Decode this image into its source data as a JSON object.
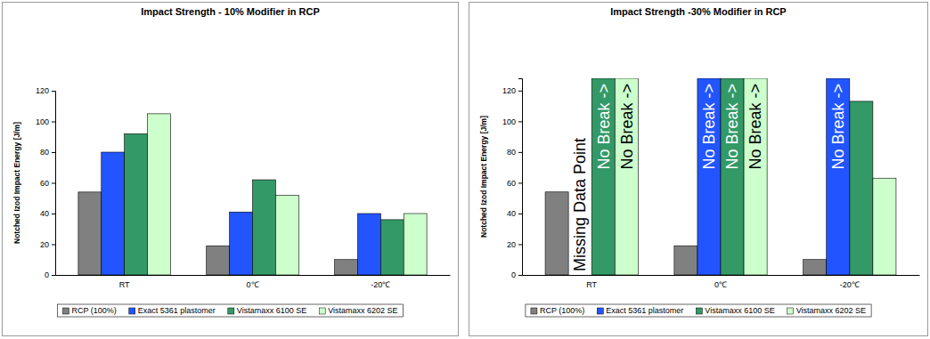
{
  "chart_data": [
    {
      "type": "bar",
      "title": "Impact Strength - 10% Modifier in RCP",
      "y_label": "Notched Izod Impact Energy [J/m]",
      "categories": [
        "RT",
        "0℃",
        "-20℃"
      ],
      "series": [
        {
          "name": "RCP (100%)",
          "color": "#808080",
          "values": [
            54,
            19,
            10
          ]
        },
        {
          "name": "Exact 5361 plastomer",
          "color": "#2255ff",
          "values": [
            80,
            41,
            40
          ]
        },
        {
          "name": "Vistamaxx 6100 SE",
          "color": "#339966",
          "values": [
            92,
            62,
            36
          ]
        },
        {
          "name": "Vistamaxx 6202 SE",
          "color": "#ccffcc",
          "values": [
            105,
            52,
            40
          ]
        }
      ],
      "ylim": [
        0,
        120
      ],
      "yticks": [
        0,
        20,
        40,
        60,
        80,
        100,
        120
      ],
      "legend": "bottom"
    },
    {
      "type": "bar",
      "title": "Impact Strength -30% Modifier in RCP",
      "y_label": "Notched Izod Impact Energy [J/m]",
      "categories": [
        "RT",
        "0℃",
        "-20℃"
      ],
      "series": [
        {
          "name": "RCP (100%)",
          "color": "#808080",
          "values": [
            54,
            19,
            10
          ]
        },
        {
          "name": "Exact 5361 plastomer",
          "color": "#2255ff",
          "values": [
            null,
            null,
            null
          ]
        },
        {
          "name": "Vistamaxx 6100 SE",
          "color": "#339966",
          "values": [
            null,
            null,
            113
          ]
        },
        {
          "name": "Vistamaxx 6202 SE",
          "color": "#ccffcc",
          "values": [
            null,
            null,
            63
          ]
        }
      ],
      "annotations": [
        {
          "text": "Missing Data Point",
          "series": 1,
          "category": 0,
          "bar": false
        },
        {
          "text": "No Break ->",
          "series": 2,
          "category": 0,
          "bar": true
        },
        {
          "text": "No Break ->",
          "series": 3,
          "category": 0,
          "bar": true
        },
        {
          "text": "No Break ->",
          "series": 1,
          "category": 1,
          "bar": true
        },
        {
          "text": "No Break ->",
          "series": 2,
          "category": 1,
          "bar": true
        },
        {
          "text": "No Break ->",
          "series": 3,
          "category": 1,
          "bar": true
        },
        {
          "text": "No Break ->",
          "series": 1,
          "category": 2,
          "bar": true
        }
      ],
      "ylim": [
        0,
        128
      ],
      "yticks": [
        0,
        20,
        40,
        60,
        80,
        100,
        120
      ],
      "legend": "bottom"
    }
  ]
}
